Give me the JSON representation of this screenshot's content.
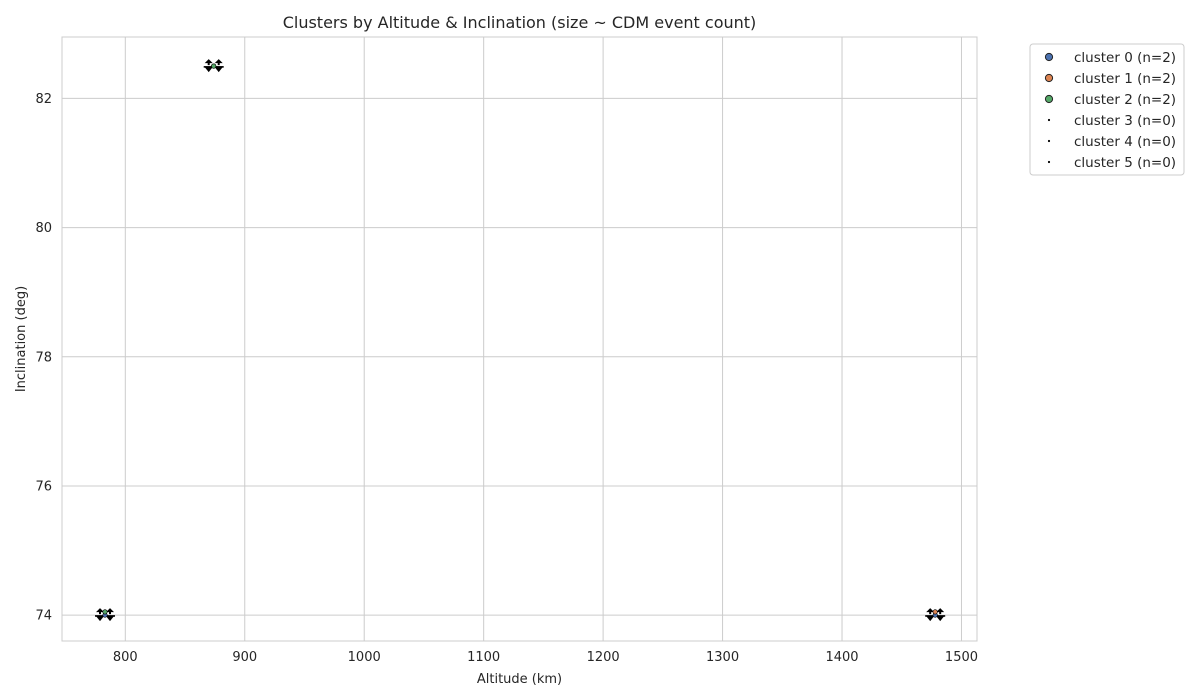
{
  "chart_data": {
    "type": "scatter",
    "title": "Clusters by Altitude & Inclination (size ~ CDM event count)",
    "xlabel": "Altitude (km)",
    "ylabel": "Inclination (deg)",
    "xlim": [
      747,
      1513
    ],
    "ylim": [
      73.6,
      82.95
    ],
    "x_ticks": [
      800,
      900,
      1000,
      1100,
      1200,
      1300,
      1400,
      1500
    ],
    "y_ticks": [
      74,
      76,
      78,
      80,
      82
    ],
    "grid": true,
    "legend_position": "outside upper-right",
    "series": [
      {
        "name": "cluster 0 (n=2)",
        "color": "#4c72b0",
        "marker_size": "small",
        "points": [
          {
            "x": 783,
            "y": 74.0
          },
          {
            "x": 1478,
            "y": 74.0
          }
        ]
      },
      {
        "name": "cluster 1 (n=2)",
        "color": "#dd8452",
        "marker_size": "small",
        "points": [
          {
            "x": 874,
            "y": 82.5
          },
          {
            "x": 1478,
            "y": 74.05
          }
        ]
      },
      {
        "name": "cluster 2 (n=2)",
        "color": "#55a868",
        "marker_size": "small",
        "points": [
          {
            "x": 874,
            "y": 82.5
          },
          {
            "x": 783,
            "y": 74.05
          }
        ]
      },
      {
        "name": "cluster 3 (n=0)",
        "color": "#000000",
        "marker_size": "dot",
        "points": []
      },
      {
        "name": "cluster 4 (n=0)",
        "color": "#000000",
        "marker_size": "dot",
        "points": []
      },
      {
        "name": "cluster 5 (n=0)",
        "color": "#000000",
        "marker_size": "dot",
        "points": []
      }
    ],
    "annotations": [
      {
        "x": 783,
        "y": 74.0,
        "marker": "black-arrow-glyphs"
      },
      {
        "x": 874,
        "y": 82.5,
        "marker": "black-arrow-glyphs"
      },
      {
        "x": 1478,
        "y": 74.0,
        "marker": "black-arrow-glyphs"
      }
    ]
  }
}
